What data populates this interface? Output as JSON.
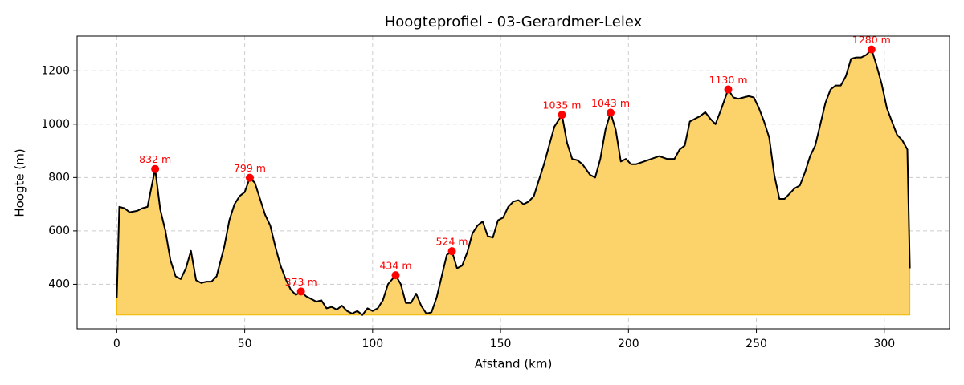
{
  "chart_data": {
    "type": "line",
    "title": "Hoogteprofiel - 03-Gerardmer-Lelex",
    "xlabel": "Afstand (km)",
    "ylabel": "Hoogte (m)",
    "xlim": [
      -15.5,
      325.5
    ],
    "ylim": [
      233,
      1330
    ],
    "xticks": [
      0,
      50,
      100,
      150,
      200,
      250,
      300
    ],
    "yticks": [
      400,
      600,
      800,
      1000,
      1200
    ],
    "grid": true,
    "series": [
      {
        "color": "#000000",
        "fill": "#fcd36a",
        "x": [
          0,
          1,
          3,
          5,
          8,
          10,
          12,
          15,
          17,
          19,
          21,
          23,
          25,
          27,
          29,
          30,
          31,
          33,
          35,
          37,
          39,
          42,
          44,
          46,
          48,
          50,
          52,
          54,
          56,
          58,
          60,
          62,
          64,
          66,
          68,
          70,
          72,
          74,
          76,
          78,
          80,
          82,
          84,
          86,
          88,
          90,
          92,
          94,
          96,
          98,
          100,
          102,
          104,
          106,
          109,
          111,
          113,
          115,
          117,
          119,
          121,
          123,
          125,
          127,
          129,
          131,
          133,
          135,
          137,
          139,
          141,
          143,
          145,
          147,
          149,
          151,
          153,
          155,
          157,
          159,
          161,
          163,
          165,
          167,
          169,
          171,
          174,
          176,
          178,
          180,
          182,
          185,
          187,
          189,
          191,
          193,
          195,
          197,
          199,
          201,
          203,
          206,
          209,
          212,
          215,
          218,
          220,
          222,
          224,
          226,
          228,
          230,
          232,
          234,
          236,
          239,
          241,
          243,
          245,
          247,
          249,
          251,
          253,
          255,
          257,
          259,
          261,
          263,
          265,
          267,
          269,
          271,
          273,
          275,
          277,
          279,
          281,
          283,
          285,
          287,
          289,
          291,
          293,
          295,
          297,
          299,
          301,
          303,
          305,
          307,
          309,
          310
        ],
        "values": [
          350,
          690,
          685,
          670,
          675,
          685,
          690,
          832,
          680,
          600,
          490,
          430,
          420,
          460,
          525,
          470,
          415,
          405,
          410,
          410,
          430,
          540,
          640,
          700,
          730,
          745,
          799,
          780,
          720,
          660,
          620,
          540,
          470,
          420,
          380,
          360,
          373,
          355,
          345,
          335,
          340,
          310,
          315,
          305,
          320,
          300,
          290,
          300,
          285,
          310,
          300,
          310,
          340,
          400,
          434,
          400,
          330,
          330,
          365,
          320,
          290,
          295,
          350,
          430,
          510,
          524,
          460,
          470,
          520,
          590,
          620,
          635,
          580,
          575,
          640,
          650,
          690,
          710,
          715,
          700,
          710,
          730,
          790,
          850,
          920,
          990,
          1035,
          930,
          870,
          865,
          850,
          810,
          800,
          870,
          980,
          1043,
          980,
          860,
          870,
          850,
          850,
          860,
          870,
          880,
          870,
          870,
          905,
          920,
          1010,
          1020,
          1030,
          1045,
          1020,
          1000,
          1050,
          1130,
          1100,
          1095,
          1100,
          1105,
          1100,
          1060,
          1010,
          950,
          810,
          720,
          720,
          740,
          760,
          770,
          820,
          880,
          920,
          1000,
          1080,
          1130,
          1145,
          1145,
          1180,
          1245,
          1250,
          1250,
          1260,
          1280,
          1220,
          1150,
          1060,
          1010,
          960,
          940,
          905,
          460
        ]
      },
      {
        "color": "#ff0000",
        "marker": true,
        "x": [
          15,
          52,
          72,
          109,
          131,
          174,
          193,
          239,
          295
        ],
        "values": [
          832,
          799,
          373,
          434,
          524,
          1035,
          1043,
          1130,
          1280
        ],
        "value_labels": [
          "832 m",
          "799 m",
          "373 m",
          "434 m",
          "524 m",
          "1035 m",
          "1043 m",
          "1130 m",
          "1280 m"
        ]
      }
    ]
  }
}
